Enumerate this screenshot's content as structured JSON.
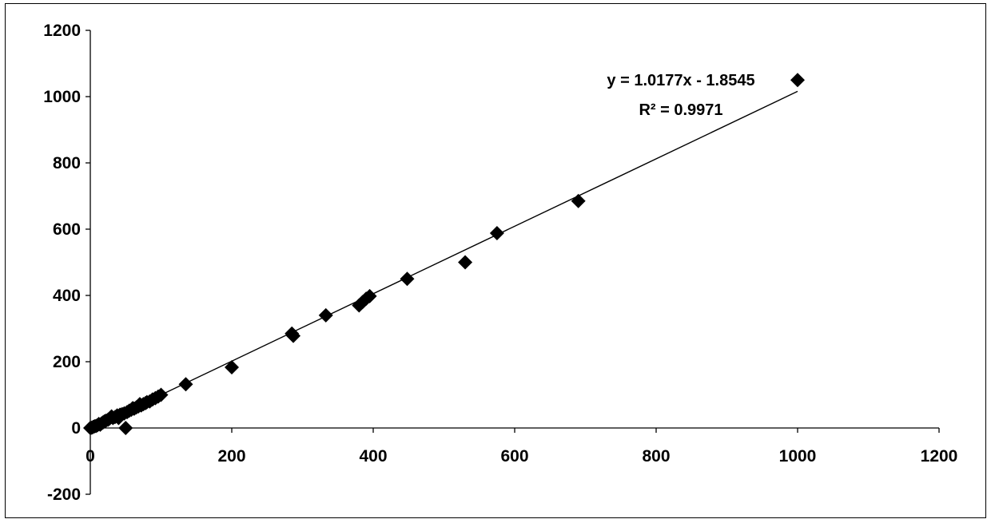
{
  "chart_data": {
    "type": "scatter",
    "title": "",
    "xlabel": "",
    "ylabel": "",
    "xlim": [
      0,
      1200
    ],
    "ylim": [
      -200,
      1200
    ],
    "x_ticks": [
      0,
      200,
      400,
      600,
      800,
      1000,
      1200
    ],
    "y_ticks": [
      -200,
      0,
      200,
      400,
      600,
      800,
      1000,
      1200
    ],
    "grid": false,
    "legend": "none",
    "marker": "diamond",
    "marker_color": "#000000",
    "series": [
      {
        "points": [
          [
            0,
            0
          ],
          [
            2,
            1
          ],
          [
            4,
            3
          ],
          [
            6,
            5
          ],
          [
            8,
            6
          ],
          [
            10,
            8
          ],
          [
            12,
            12
          ],
          [
            14,
            10
          ],
          [
            16,
            14
          ],
          [
            18,
            17
          ],
          [
            20,
            20
          ],
          [
            22,
            22
          ],
          [
            25,
            25
          ],
          [
            27,
            28
          ],
          [
            30,
            35
          ],
          [
            32,
            30
          ],
          [
            35,
            33
          ],
          [
            38,
            38
          ],
          [
            40,
            30
          ],
          [
            42,
            40
          ],
          [
            45,
            42
          ],
          [
            48,
            44
          ],
          [
            50,
            0
          ],
          [
            52,
            48
          ],
          [
            55,
            52
          ],
          [
            58,
            55
          ],
          [
            60,
            60
          ],
          [
            62,
            58
          ],
          [
            65,
            62
          ],
          [
            68,
            65
          ],
          [
            70,
            72
          ],
          [
            72,
            68
          ],
          [
            75,
            72
          ],
          [
            78,
            75
          ],
          [
            80,
            78
          ],
          [
            84,
            80
          ],
          [
            88,
            86
          ],
          [
            92,
            90
          ],
          [
            96,
            95
          ],
          [
            100,
            100
          ],
          [
            135,
            132
          ],
          [
            200,
            183
          ],
          [
            285,
            285
          ],
          [
            287,
            278
          ],
          [
            333,
            340
          ],
          [
            380,
            370
          ],
          [
            385,
            380
          ],
          [
            390,
            390
          ],
          [
            395,
            398
          ],
          [
            448,
            450
          ],
          [
            530,
            500
          ],
          [
            575,
            588
          ],
          [
            690,
            685
          ],
          [
            1000,
            1050
          ]
        ]
      }
    ],
    "trendline": {
      "slope": 1.0177,
      "intercept": -1.8545,
      "x_range": [
        0,
        1000
      ],
      "equation": "y = 1.0177x - 1.8545",
      "r_squared": "R² = 0.9971"
    }
  }
}
